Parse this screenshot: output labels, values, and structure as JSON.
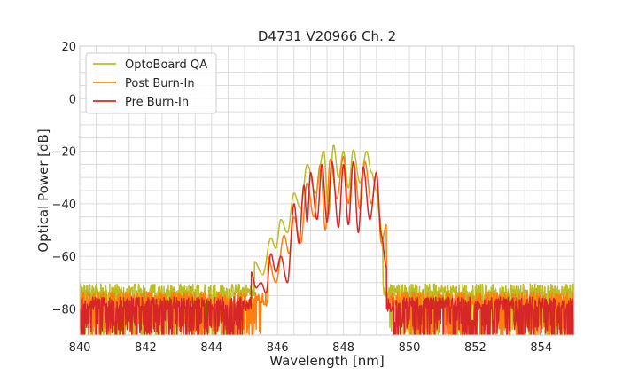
{
  "chart_data": {
    "type": "line",
    "title": "D4731 V20966 Ch. 2",
    "xlabel": "Wavelength [nm]",
    "ylabel": "Optical Power [dB]",
    "xlim": [
      840,
      855
    ],
    "ylim": [
      -90,
      20
    ],
    "xticks": [
      840,
      842,
      844,
      846,
      848,
      850,
      852,
      854
    ],
    "yticks": [
      20,
      0,
      -20,
      -40,
      -60,
      -80
    ],
    "xtick_labels": [
      "840",
      "842",
      "844",
      "846",
      "848",
      "850",
      "852",
      "854"
    ],
    "ytick_labels": [
      "20",
      "0",
      "−20",
      "−40",
      "−60",
      "−80"
    ],
    "grid": true,
    "legend_position": "top-left",
    "series": [
      {
        "name": "OptoBoard QA",
        "color": "#bcbd22",
        "noise_floor": -73,
        "peaks": [
          [
            845.3,
            -62
          ],
          [
            845.8,
            -53
          ],
          [
            846.1,
            -46
          ],
          [
            846.5,
            -36
          ],
          [
            846.9,
            -25
          ],
          [
            847.4,
            -20
          ],
          [
            847.7,
            -17.5
          ],
          [
            848.0,
            -20
          ],
          [
            848.3,
            -19.5
          ],
          [
            848.7,
            -20
          ],
          [
            849.0,
            -35
          ],
          [
            849.2,
            -58
          ]
        ],
        "valleys": [
          [
            845.55,
            -67
          ],
          [
            845.95,
            -57
          ],
          [
            846.3,
            -51
          ],
          [
            846.7,
            -42
          ],
          [
            847.15,
            -36
          ],
          [
            847.55,
            -44
          ],
          [
            847.85,
            -30
          ],
          [
            848.15,
            -34
          ],
          [
            848.5,
            -32
          ],
          [
            848.85,
            -28
          ],
          [
            849.1,
            -45
          ]
        ],
        "band": [
          845.0,
          849.4
        ]
      },
      {
        "name": "Post Burn-In",
        "color": "#ff7f0e",
        "noise_floor": -76,
        "peaks": [
          [
            845.7,
            -60
          ],
          [
            846.2,
            -52
          ],
          [
            846.5,
            -45
          ],
          [
            846.9,
            -32
          ],
          [
            847.3,
            -25
          ],
          [
            847.6,
            -23
          ],
          [
            848.0,
            -22
          ],
          [
            848.3,
            -24
          ],
          [
            848.65,
            -24
          ],
          [
            849.0,
            -29
          ],
          [
            849.3,
            -48
          ]
        ],
        "valleys": [
          [
            845.95,
            -70
          ],
          [
            846.35,
            -59
          ],
          [
            846.7,
            -55
          ],
          [
            847.1,
            -45
          ],
          [
            847.45,
            -50
          ],
          [
            847.8,
            -38
          ],
          [
            848.15,
            -40
          ],
          [
            848.5,
            -42
          ],
          [
            848.85,
            -40
          ],
          [
            849.15,
            -55
          ]
        ],
        "band": [
          845.5,
          849.5
        ]
      },
      {
        "name": "Pre Burn-In",
        "color": "#d62728",
        "noise_floor": -78,
        "peaks": [
          [
            845.2,
            -66
          ],
          [
            845.5,
            -70
          ],
          [
            845.8,
            -59
          ],
          [
            846.1,
            -60
          ],
          [
            846.5,
            -40
          ],
          [
            846.8,
            -33
          ],
          [
            847.0,
            -28
          ],
          [
            847.35,
            -25
          ],
          [
            847.65,
            -24
          ],
          [
            848.0,
            -25
          ],
          [
            848.3,
            -24
          ],
          [
            848.6,
            -26
          ],
          [
            849.0,
            -28
          ],
          [
            849.3,
            -64
          ]
        ],
        "valleys": [
          [
            845.35,
            -72
          ],
          [
            845.65,
            -74
          ],
          [
            845.95,
            -66
          ],
          [
            846.3,
            -70
          ],
          [
            846.65,
            -55
          ],
          [
            846.9,
            -47
          ],
          [
            847.2,
            -46
          ],
          [
            847.5,
            -47
          ],
          [
            847.85,
            -49
          ],
          [
            848.15,
            -48
          ],
          [
            848.45,
            -51
          ],
          [
            848.8,
            -46
          ],
          [
            849.15,
            -52
          ]
        ],
        "band": [
          845.0,
          849.5
        ]
      }
    ]
  }
}
